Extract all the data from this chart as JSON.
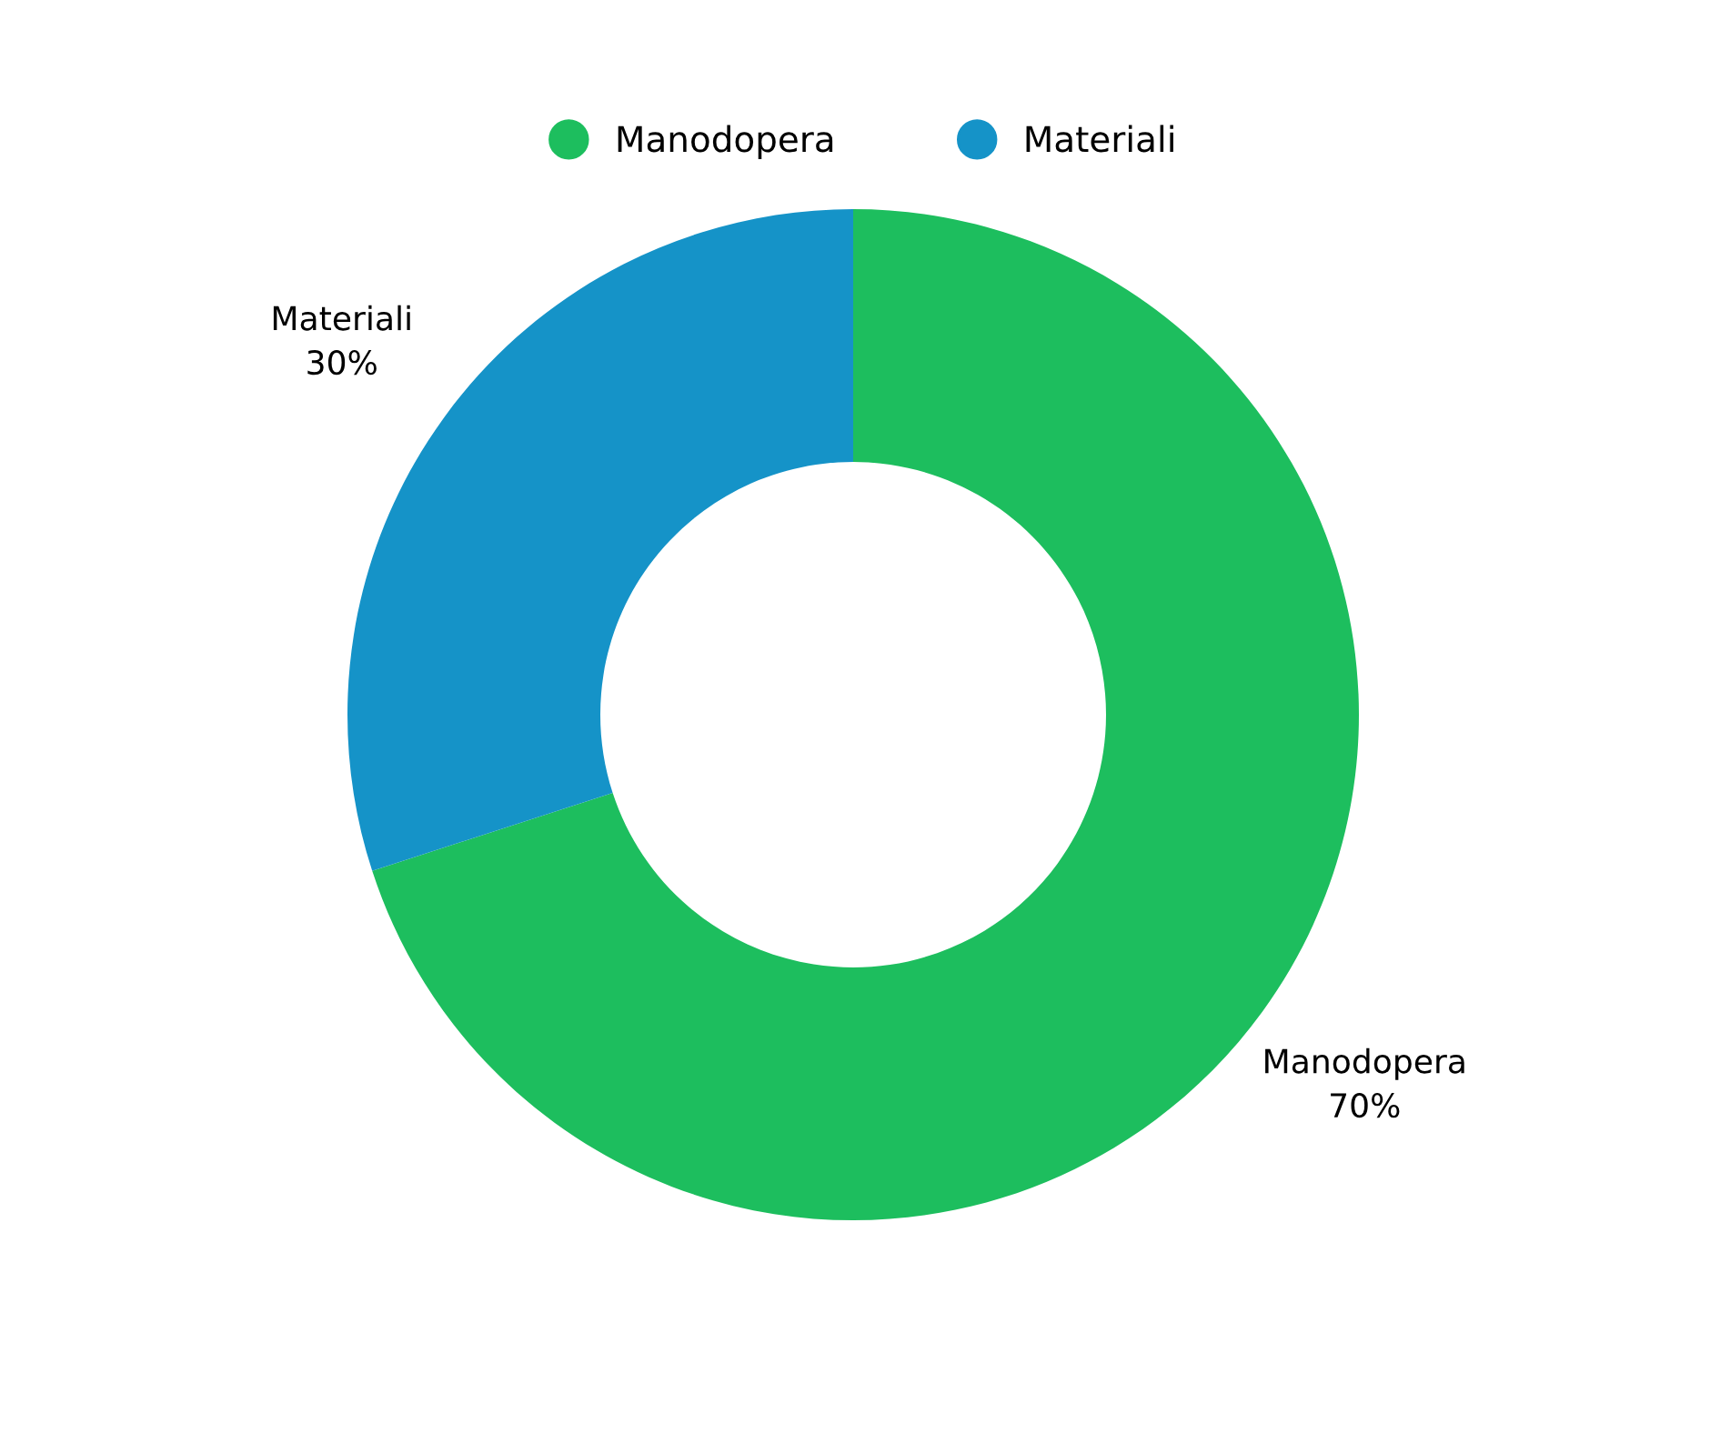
{
  "chart_data": {
    "type": "donut",
    "categories": [
      "Manodopera",
      "Materiali"
    ],
    "values": [
      70,
      30
    ],
    "value_labels": [
      "70%",
      "30%"
    ],
    "colors": [
      "#1dbe5e",
      "#1593c8"
    ],
    "legend": "top"
  }
}
